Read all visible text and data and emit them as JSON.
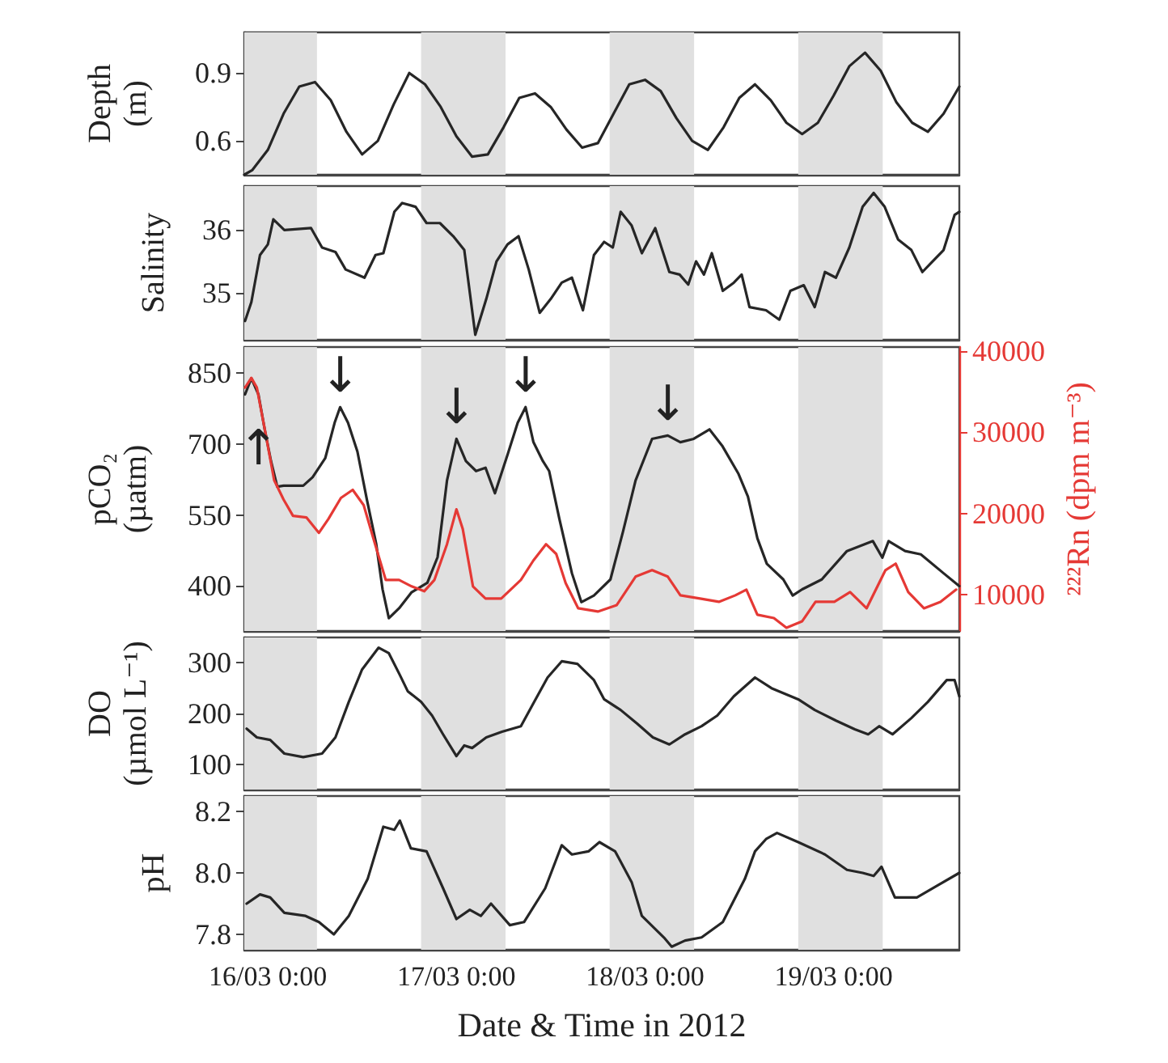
{
  "chart_data": [
    {
      "type": "line",
      "ylabel": "Depth\n(m)",
      "xlim": [
        "2012-03-15T21:00",
        "2012-03-19T16:00"
      ],
      "xticks": [
        {
          "value": "2012-03-16T00:00",
          "label": null
        },
        {
          "value": "2012-03-17T00:00",
          "label": null
        },
        {
          "value": "2012-03-18T00:00",
          "label": null
        },
        {
          "value": "2012-03-19T00:00",
          "label": null
        }
      ],
      "ylim": [
        0.45,
        1.08
      ],
      "yticks": [
        0.6,
        0.9
      ],
      "tick_labels": "y",
      "marker": "none",
      "x": [
        "2012-03-15T21:00",
        "2012-03-15T22:00",
        "2012-03-16T00:00",
        "2012-03-16T02:00",
        "2012-03-16T04:00",
        "2012-03-16T06:00",
        "2012-03-16T08:00",
        "2012-03-16T10:00",
        "2012-03-16T12:00",
        "2012-03-16T14:00",
        "2012-03-16T16:00",
        "2012-03-16T18:00",
        "2012-03-16T20:00",
        "2012-03-16T22:00",
        "2012-03-17T00:00",
        "2012-03-17T02:00",
        "2012-03-17T04:00",
        "2012-03-17T06:00",
        "2012-03-17T08:00",
        "2012-03-17T10:00",
        "2012-03-17T12:00",
        "2012-03-17T14:00",
        "2012-03-17T16:00",
        "2012-03-17T18:00",
        "2012-03-17T20:00",
        "2012-03-17T22:00",
        "2012-03-18T00:00",
        "2012-03-18T02:00",
        "2012-03-18T04:00",
        "2012-03-18T06:00",
        "2012-03-18T08:00",
        "2012-03-18T10:00",
        "2012-03-18T12:00",
        "2012-03-18T14:00",
        "2012-03-18T16:00",
        "2012-03-18T18:00",
        "2012-03-18T20:00",
        "2012-03-18T22:00",
        "2012-03-19T00:00",
        "2012-03-19T02:00",
        "2012-03-19T04:00",
        "2012-03-19T06:00",
        "2012-03-19T08:00",
        "2012-03-19T10:00",
        "2012-03-19T12:00",
        "2012-03-19T14:00",
        "2012-03-19T16:00"
      ],
      "series": [
        {
          "color": "#262626",
          "values": [
            0.45,
            0.47,
            0.56,
            0.72,
            0.84,
            0.86,
            0.78,
            0.64,
            0.54,
            0.6,
            0.76,
            0.9,
            0.85,
            0.75,
            0.62,
            0.53,
            0.54,
            0.66,
            0.79,
            0.81,
            0.75,
            0.65,
            0.57,
            0.59,
            0.72,
            0.85,
            0.87,
            0.82,
            0.7,
            0.6,
            0.56,
            0.66,
            0.79,
            0.85,
            0.78,
            0.68,
            0.63,
            0.68,
            0.8,
            0.93,
            0.99,
            0.91,
            0.77,
            0.68,
            0.64,
            0.72,
            0.84
          ]
        }
      ],
      "bands": [
        {
          "axis": "x",
          "from": "2012-03-15T21:00",
          "to": "2012-03-16T06:15",
          "color": "#e0e0e0"
        },
        {
          "axis": "x",
          "from": "2012-03-16T19:30",
          "to": "2012-03-17T06:15",
          "color": "#e0e0e0"
        },
        {
          "axis": "x",
          "from": "2012-03-17T19:30",
          "to": "2012-03-18T06:15",
          "color": "#e0e0e0"
        },
        {
          "axis": "x",
          "from": "2012-03-18T19:30",
          "to": "2012-03-19T06:15",
          "color": "#e0e0e0"
        }
      ]
    },
    {
      "type": "line",
      "ylabel": "Salinity",
      "xlim": [
        "2012-03-15T21:00",
        "2012-03-19T16:00"
      ],
      "xticks": [
        {
          "value": "2012-03-16T00:00",
          "label": null
        },
        {
          "value": "2012-03-17T00:00",
          "label": null
        },
        {
          "value": "2012-03-18T00:00",
          "label": null
        },
        {
          "value": "2012-03-19T00:00",
          "label": null
        }
      ],
      "ylim": [
        34.25,
        36.7
      ],
      "yticks": [
        35,
        36
      ],
      "tick_labels": "y",
      "marker": "none",
      "x": [
        "2012-03-15T21:06",
        "2012-03-15T21:54",
        "2012-03-15T23:00",
        "2012-03-16T00:00",
        "2012-03-16T00:42",
        "2012-03-16T02:06",
        "2012-03-16T05:30",
        "2012-03-16T06:54",
        "2012-03-16T08:36",
        "2012-03-16T09:54",
        "2012-03-16T12:18",
        "2012-03-16T13:42",
        "2012-03-16T14:42",
        "2012-03-16T16:06",
        "2012-03-16T17:06",
        "2012-03-16T18:48",
        "2012-03-16T20:12",
        "2012-03-16T21:54",
        "2012-03-16T23:36",
        "2012-03-17T01:00",
        "2012-03-17T02:24",
        "2012-03-17T03:48",
        "2012-03-17T05:06",
        "2012-03-17T06:30",
        "2012-03-17T07:54",
        "2012-03-17T09:12",
        "2012-03-17T10:36",
        "2012-03-17T12:00",
        "2012-03-17T13:24",
        "2012-03-17T14:42",
        "2012-03-17T16:06",
        "2012-03-17T17:30",
        "2012-03-17T18:48",
        "2012-03-17T19:54",
        "2012-03-17T20:54",
        "2012-03-17T22:18",
        "2012-03-17T23:36",
        "2012-03-18T01:18",
        "2012-03-18T03:06",
        "2012-03-18T04:24",
        "2012-03-18T05:30",
        "2012-03-18T06:30",
        "2012-03-18T07:30",
        "2012-03-18T08:30",
        "2012-03-18T09:54",
        "2012-03-18T11:18",
        "2012-03-18T12:18",
        "2012-03-18T13:18",
        "2012-03-18T15:24",
        "2012-03-18T17:06",
        "2012-03-18T18:30",
        "2012-03-18T20:12",
        "2012-03-18T21:36",
        "2012-03-18T22:54",
        "2012-03-19T00:18",
        "2012-03-19T02:00",
        "2012-03-19T03:42",
        "2012-03-19T05:06",
        "2012-03-19T06:30",
        "2012-03-19T08:12",
        "2012-03-19T09:54",
        "2012-03-19T11:18",
        "2012-03-19T12:36",
        "2012-03-19T14:00",
        "2012-03-19T15:24",
        "2012-03-19T16:00"
      ],
      "series": [
        {
          "color": "#262626",
          "values": [
            34.55,
            34.85,
            35.6,
            35.77,
            36.17,
            36.0,
            36.03,
            35.72,
            35.65,
            35.37,
            35.24,
            35.6,
            35.63,
            36.29,
            36.43,
            36.37,
            36.11,
            36.11,
            35.9,
            35.68,
            34.33,
            34.9,
            35.5,
            35.77,
            35.9,
            35.37,
            34.68,
            34.9,
            35.16,
            35.24,
            34.72,
            35.6,
            35.81,
            35.72,
            36.29,
            36.07,
            35.63,
            36.03,
            35.33,
            35.29,
            35.13,
            35.5,
            35.29,
            35.63,
            35.03,
            35.16,
            35.29,
            34.77,
            34.72,
            34.57,
            35.03,
            35.12,
            34.77,
            35.33,
            35.24,
            35.72,
            36.37,
            36.59,
            36.37,
            35.85,
            35.68,
            35.33,
            35.5,
            35.68,
            36.24,
            36.29
          ]
        }
      ],
      "bands": [
        {
          "axis": "x",
          "from": "2012-03-15T21:00",
          "to": "2012-03-16T06:15",
          "color": "#e0e0e0"
        },
        {
          "axis": "x",
          "from": "2012-03-16T19:30",
          "to": "2012-03-17T06:15",
          "color": "#e0e0e0"
        },
        {
          "axis": "x",
          "from": "2012-03-17T19:30",
          "to": "2012-03-18T06:15",
          "color": "#e0e0e0"
        },
        {
          "axis": "x",
          "from": "2012-03-18T19:30",
          "to": "2012-03-19T06:15",
          "color": "#e0e0e0"
        }
      ]
    },
    {
      "type": "line",
      "ylabel": "pCO₂\n(µatm)",
      "y2label": "²²²Rn (dpm m⁻³)",
      "xlim": [
        "2012-03-15T21:00",
        "2012-03-19T16:00"
      ],
      "xticks": [
        {
          "value": "2012-03-16T00:00",
          "label": null
        },
        {
          "value": "2012-03-17T00:00",
          "label": null
        },
        {
          "value": "2012-03-18T00:00",
          "label": null
        },
        {
          "value": "2012-03-19T00:00",
          "label": null
        }
      ],
      "ylim": [
        305,
        905
      ],
      "yticks": [
        400,
        550,
        700,
        850
      ],
      "y2lim": [
        5500,
        40500
      ],
      "y2ticks": [
        10000,
        20000,
        30000,
        40000
      ],
      "tick_labels": "y",
      "marker": "none",
      "series": [
        {
          "color": "#262626",
          "x": [
            "2012-03-15T21:06",
            "2012-03-15T21:54",
            "2012-03-15T22:48",
            "2012-03-15T23:36",
            "2012-03-16T00:24",
            "2012-03-16T01:12",
            "2012-03-16T02:00",
            "2012-03-16T04:30",
            "2012-03-16T05:42",
            "2012-03-16T07:18",
            "2012-03-16T08:30",
            "2012-03-16T09:12",
            "2012-03-16T10:12",
            "2012-03-16T11:24",
            "2012-03-16T12:36",
            "2012-03-16T13:48",
            "2012-03-16T14:36",
            "2012-03-16T15:24",
            "2012-03-16T16:42",
            "2012-03-16T18:18",
            "2012-03-16T20:18",
            "2012-03-16T21:36",
            "2012-03-16T22:48",
            "2012-03-17T00:00",
            "2012-03-17T01:12",
            "2012-03-17T02:30",
            "2012-03-17T03:42",
            "2012-03-17T04:54",
            "2012-03-17T06:30",
            "2012-03-17T07:48",
            "2012-03-17T08:48",
            "2012-03-17T09:48",
            "2012-03-17T11:00",
            "2012-03-17T11:48",
            "2012-03-17T13:06",
            "2012-03-17T14:42",
            "2012-03-17T15:54",
            "2012-03-17T17:30",
            "2012-03-17T19:36",
            "2012-03-17T21:12",
            "2012-03-17T22:48",
            "2012-03-18T00:54",
            "2012-03-18T02:54",
            "2012-03-18T04:30",
            "2012-03-18T06:12",
            "2012-03-18T08:12",
            "2012-03-18T09:48",
            "2012-03-18T11:54",
            "2012-03-18T13:06",
            "2012-03-18T14:18",
            "2012-03-18T15:30",
            "2012-03-18T17:36",
            "2012-03-18T18:48",
            "2012-03-18T20:00",
            "2012-03-18T22:30",
            "2012-03-19T01:42",
            "2012-03-19T05:00",
            "2012-03-19T06:12",
            "2012-03-19T07:00",
            "2012-03-19T09:06",
            "2012-03-19T11:06",
            "2012-03-19T14:00",
            "2012-03-19T16:00"
          ],
          "values": [
            805,
            839,
            805,
            731,
            664,
            610,
            612,
            612,
            630,
            670,
            745,
            778,
            745,
            684,
            583,
            488,
            393,
            332,
            353,
            387,
            407,
            461,
            623,
            711,
            664,
            643,
            650,
            596,
            677,
            745,
            778,
            704,
            664,
            643,
            542,
            427,
            366,
            380,
            414,
            515,
            623,
            711,
            718,
            704,
            711,
            731,
            697,
            637,
            589,
            501,
            447,
            414,
            380,
            393,
            414,
            474,
            495,
            460,
            495,
            474,
            467,
            427,
            400
          ]
        },
        {
          "color": "#e53935",
          "axis": "y2",
          "x": [
            "2012-03-15T21:06",
            "2012-03-15T21:54",
            "2012-03-15T22:36",
            "2012-03-15T23:36",
            "2012-03-16T00:48",
            "2012-03-16T02:00",
            "2012-03-16T03:12",
            "2012-03-16T04:54",
            "2012-03-16T06:30",
            "2012-03-16T07:42",
            "2012-03-16T09:18",
            "2012-03-16T10:48",
            "2012-03-16T12:12",
            "2012-03-16T13:24",
            "2012-03-16T15:00",
            "2012-03-16T16:42",
            "2012-03-16T18:18",
            "2012-03-16T19:54",
            "2012-03-16T21:12",
            "2012-03-16T22:48",
            "2012-03-17T00:00",
            "2012-03-17T00:48",
            "2012-03-17T02:06",
            "2012-03-17T03:42",
            "2012-03-17T05:42",
            "2012-03-17T08:12",
            "2012-03-17T09:48",
            "2012-03-17T11:24",
            "2012-03-17T12:42",
            "2012-03-17T13:54",
            "2012-03-17T15:30",
            "2012-03-17T18:00",
            "2012-03-17T20:24",
            "2012-03-17T22:48",
            "2012-03-18T00:54",
            "2012-03-18T02:54",
            "2012-03-18T04:30",
            "2012-03-18T07:00",
            "2012-03-18T09:24",
            "2012-03-18T11:30",
            "2012-03-18T12:54",
            "2012-03-18T14:18",
            "2012-03-18T16:24",
            "2012-03-18T18:00",
            "2012-03-18T20:00",
            "2012-03-18T21:42",
            "2012-03-19T00:06",
            "2012-03-19T02:06",
            "2012-03-19T04:12",
            "2012-03-19T06:36",
            "2012-03-19T07:54",
            "2012-03-19T09:30",
            "2012-03-19T11:30",
            "2012-03-19T13:36",
            "2012-03-19T15:36"
          ],
          "values": [
            35500,
            36700,
            35500,
            30400,
            24100,
            21700,
            19700,
            19500,
            17600,
            19300,
            21900,
            22900,
            21000,
            17000,
            11800,
            11800,
            11000,
            10400,
            11800,
            16200,
            20500,
            18100,
            11000,
            9500,
            9500,
            11800,
            14200,
            16200,
            15000,
            11400,
            8300,
            7900,
            8700,
            12200,
            13000,
            12200,
            9900,
            9500,
            9100,
            9900,
            10600,
            7500,
            7100,
            5900,
            6700,
            9100,
            9100,
            10300,
            8300,
            13000,
            13800,
            10300,
            8300,
            9100,
            10600
          ]
        }
      ],
      "annotations": [
        {
          "text": "↑",
          "x": "2012-03-15T22:00",
          "y": 690
        },
        {
          "text": "↓",
          "x": "2012-03-16T09:12",
          "y": 778
        },
        {
          "text": "↓",
          "x": "2012-03-17T00:00",
          "y": 711
        },
        {
          "text": "↓",
          "x": "2012-03-17T08:48",
          "y": 778
        },
        {
          "text": "↓",
          "x": "2012-03-18T02:54",
          "y": 718
        }
      ],
      "bands": [
        {
          "axis": "x",
          "from": "2012-03-15T21:00",
          "to": "2012-03-16T06:15",
          "color": "#e0e0e0"
        },
        {
          "axis": "x",
          "from": "2012-03-16T19:30",
          "to": "2012-03-17T06:15",
          "color": "#e0e0e0"
        },
        {
          "axis": "x",
          "from": "2012-03-17T19:30",
          "to": "2012-03-18T06:15",
          "color": "#e0e0e0"
        },
        {
          "axis": "x",
          "from": "2012-03-18T19:30",
          "to": "2012-03-19T06:15",
          "color": "#e0e0e0"
        }
      ]
    },
    {
      "type": "line",
      "ylabel": "DO\n(µmol L⁻¹)",
      "xlim": [
        "2012-03-15T21:00",
        "2012-03-19T16:00"
      ],
      "xticks": [
        {
          "value": "2012-03-16T00:00",
          "label": null
        },
        {
          "value": "2012-03-17T00:00",
          "label": null
        },
        {
          "value": "2012-03-18T00:00",
          "label": null
        },
        {
          "value": "2012-03-19T00:00",
          "label": null
        }
      ],
      "ylim": [
        50,
        350
      ],
      "yticks": [
        100,
        200,
        300
      ],
      "tick_labels": "y",
      "marker": "none",
      "x": [
        "2012-03-15T21:18",
        "2012-03-15T22:36",
        "2012-03-16T00:18",
        "2012-03-16T02:06",
        "2012-03-16T04:30",
        "2012-03-16T06:54",
        "2012-03-16T08:36",
        "2012-03-16T10:18",
        "2012-03-16T12:00",
        "2012-03-16T14:06",
        "2012-03-16T15:24",
        "2012-03-16T16:48",
        "2012-03-16T17:48",
        "2012-03-16T19:30",
        "2012-03-16T20:54",
        "2012-03-16T22:18",
        "2012-03-17T00:00",
        "2012-03-17T01:00",
        "2012-03-17T02:00",
        "2012-03-17T03:48",
        "2012-03-17T05:48",
        "2012-03-17T08:12",
        "2012-03-17T09:54",
        "2012-03-17T11:36",
        "2012-03-17T13:24",
        "2012-03-17T15:24",
        "2012-03-17T17:30",
        "2012-03-17T18:48",
        "2012-03-17T20:54",
        "2012-03-17T23:00",
        "2012-03-18T01:00",
        "2012-03-18T03:06",
        "2012-03-18T05:06",
        "2012-03-18T07:12",
        "2012-03-18T09:12",
        "2012-03-18T11:18",
        "2012-03-18T14:00",
        "2012-03-18T16:06",
        "2012-03-18T19:30",
        "2012-03-18T21:36",
        "2012-03-19T00:18",
        "2012-03-19T02:42",
        "2012-03-19T04:24",
        "2012-03-19T05:48",
        "2012-03-19T07:30",
        "2012-03-19T09:54",
        "2012-03-19T12:00",
        "2012-03-19T14:24",
        "2012-03-19T15:24",
        "2012-03-19T16:00"
      ],
      "series": [
        {
          "color": "#262626",
          "values": [
            170,
            153,
            148,
            121,
            114,
            121,
            153,
            223,
            287,
            330,
            319,
            276,
            244,
            223,
            196,
            159,
            116,
            137,
            132,
            153,
            164,
            175,
            223,
            271,
            303,
            298,
            266,
            228,
            207,
            180,
            153,
            139,
            159,
            175,
            196,
            234,
            271,
            250,
            228,
            207,
            186,
            169,
            159,
            175,
            159,
            191,
            223,
            266,
            266,
            234
          ]
        }
      ],
      "bands": [
        {
          "axis": "x",
          "from": "2012-03-15T21:00",
          "to": "2012-03-16T06:15",
          "color": "#e0e0e0"
        },
        {
          "axis": "x",
          "from": "2012-03-16T19:30",
          "to": "2012-03-17T06:15",
          "color": "#e0e0e0"
        },
        {
          "axis": "x",
          "from": "2012-03-17T19:30",
          "to": "2012-03-18T06:15",
          "color": "#e0e0e0"
        },
        {
          "axis": "x",
          "from": "2012-03-18T19:30",
          "to": "2012-03-19T06:15",
          "color": "#e0e0e0"
        }
      ]
    },
    {
      "type": "line",
      "ylabel": "pH",
      "xlabel": "Date & Time in 2012",
      "xlim": [
        "2012-03-15T21:00",
        "2012-03-19T16:00"
      ],
      "xticks": [
        {
          "value": "2012-03-16T00:00",
          "label": "16/03 0:00"
        },
        {
          "value": "2012-03-17T00:00",
          "label": "17/03 0:00"
        },
        {
          "value": "2012-03-18T00:00",
          "label": "18/03 0:00"
        },
        {
          "value": "2012-03-19T00:00",
          "label": "19/03 0:00"
        }
      ],
      "ylim": [
        7.75,
        8.25
      ],
      "yticks": [
        {
          "value": 7.8,
          "label": "7.8"
        },
        {
          "value": 8,
          "label": "8.0"
        },
        {
          "value": 8.2,
          "label": "8.2"
        }
      ],
      "marker": "none",
      "x": [
        "2012-03-15T21:18",
        "2012-03-15T23:00",
        "2012-03-16T00:18",
        "2012-03-16T02:06",
        "2012-03-16T04:48",
        "2012-03-16T06:30",
        "2012-03-16T08:24",
        "2012-03-16T10:18",
        "2012-03-16T12:42",
        "2012-03-16T14:42",
        "2012-03-16T16:06",
        "2012-03-16T16:48",
        "2012-03-16T18:12",
        "2012-03-16T20:12",
        "2012-03-16T22:18",
        "2012-03-17T00:00",
        "2012-03-17T01:42",
        "2012-03-17T03:06",
        "2012-03-17T04:24",
        "2012-03-17T06:48",
        "2012-03-17T08:36",
        "2012-03-17T11:18",
        "2012-03-17T13:24",
        "2012-03-17T14:42",
        "2012-03-17T16:48",
        "2012-03-17T18:12",
        "2012-03-17T20:12",
        "2012-03-17T22:18",
        "2012-03-17T23:36",
        "2012-03-18T02:24",
        "2012-03-18T03:24",
        "2012-03-18T05:06",
        "2012-03-18T07:12",
        "2012-03-18T09:54",
        "2012-03-18T12:42",
        "2012-03-18T14:00",
        "2012-03-18T15:24",
        "2012-03-18T16:48",
        "2012-03-18T19:30",
        "2012-03-18T22:54",
        "2012-03-19T01:42",
        "2012-03-19T03:42",
        "2012-03-19T05:06",
        "2012-03-19T06:06",
        "2012-03-19T07:48",
        "2012-03-19T10:36",
        "2012-03-19T13:18",
        "2012-03-19T16:00"
      ],
      "series": [
        {
          "color": "#262626",
          "values": [
            7.9,
            7.93,
            7.92,
            7.87,
            7.86,
            7.84,
            7.8,
            7.86,
            7.98,
            8.15,
            8.14,
            8.17,
            8.08,
            8.07,
            7.95,
            7.85,
            7.88,
            7.86,
            7.9,
            7.83,
            7.84,
            7.95,
            8.09,
            8.06,
            8.07,
            8.1,
            8.07,
            7.97,
            7.86,
            7.79,
            7.76,
            7.78,
            7.79,
            7.84,
            7.98,
            8.07,
            8.11,
            8.13,
            8.1,
            8.06,
            8.01,
            8.0,
            7.99,
            8.02,
            7.92,
            7.92,
            7.96,
            8.0
          ]
        }
      ],
      "bands": [
        {
          "axis": "x",
          "from": "2012-03-15T21:00",
          "to": "2012-03-16T06:15",
          "color": "#e0e0e0"
        },
        {
          "axis": "x",
          "from": "2012-03-16T19:30",
          "to": "2012-03-17T06:15",
          "color": "#e0e0e0"
        },
        {
          "axis": "x",
          "from": "2012-03-17T19:30",
          "to": "2012-03-18T06:15",
          "color": "#e0e0e0"
        },
        {
          "axis": "x",
          "from": "2012-03-18T19:30",
          "to": "2012-03-19T06:15",
          "color": "#e0e0e0"
        }
      ]
    }
  ]
}
